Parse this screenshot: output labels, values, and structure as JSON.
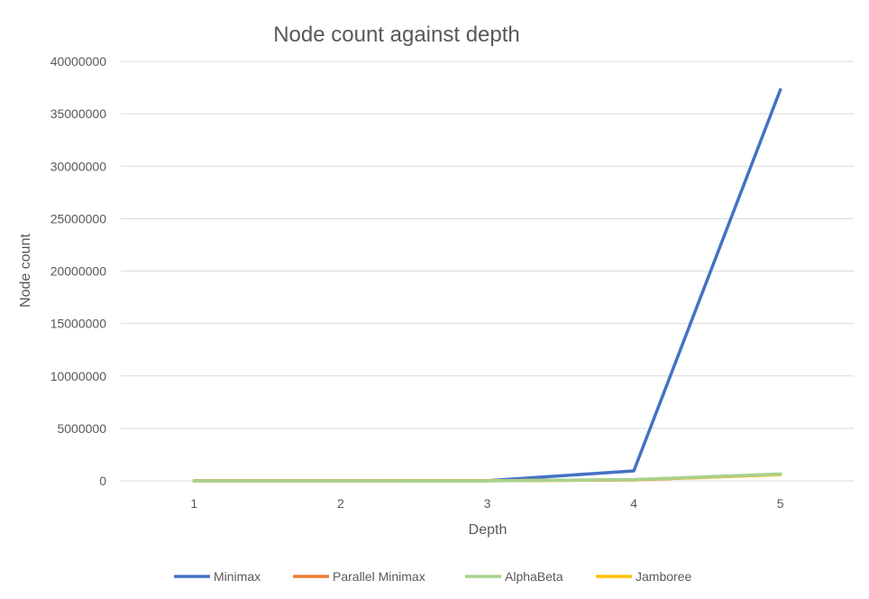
{
  "chart_data": {
    "type": "line",
    "title": "Node count against depth",
    "xlabel": "Depth",
    "ylabel": "Node count",
    "categories": [
      "1",
      "2",
      "3",
      "4",
      "5"
    ],
    "ylim": [
      0,
      40000000
    ],
    "yticks": [
      0,
      5000000,
      10000000,
      15000000,
      20000000,
      25000000,
      30000000,
      35000000,
      40000000
    ],
    "grid": true,
    "legend_position": "bottom",
    "series": [
      {
        "name": "Minimax",
        "color": "#4472C4",
        "values": [
          20,
          400,
          9000,
          950000,
          37300000
        ]
      },
      {
        "name": "Parallel Minimax",
        "color": "#ED7D31",
        "values": [
          20,
          400,
          9000,
          90000,
          600000
        ]
      },
      {
        "name": "AlphaBeta",
        "color": "#A9D18E",
        "values": [
          20,
          300,
          4000,
          120000,
          650000
        ]
      },
      {
        "name": "Jamboree",
        "color": "#FFC000",
        "values": [
          20,
          350,
          6000,
          100000,
          600000
        ]
      }
    ]
  }
}
